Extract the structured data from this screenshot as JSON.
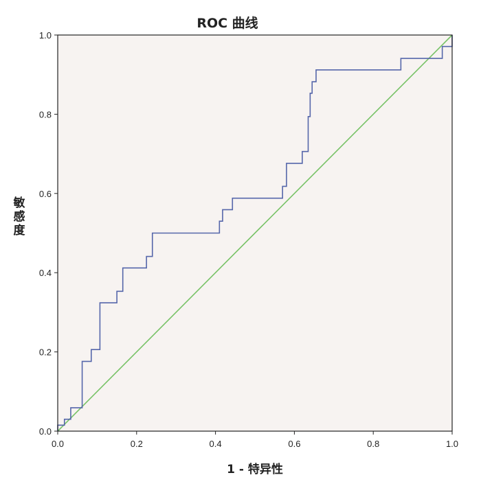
{
  "chart_data": {
    "type": "line",
    "title": "ROC 曲线",
    "xlabel": "1 - 特异性",
    "ylabel": "敏感度",
    "xlim": [
      0.0,
      1.0
    ],
    "ylim": [
      0.0,
      1.0
    ],
    "x_ticks": [
      "0.0",
      "0.2",
      "0.4",
      "0.6",
      "0.8",
      "1.0"
    ],
    "y_ticks": [
      "0.0",
      "0.2",
      "0.4",
      "0.6",
      "0.8",
      "1.0"
    ],
    "grid": false,
    "legend": "none",
    "colors": {
      "plot_background": "#f7f3f1",
      "roc_curve": "#5566aa",
      "reference_line": "#77c266",
      "frame": "#222222"
    },
    "series": [
      {
        "line_style": "step",
        "x": [
          0.0,
          0.0,
          0.017,
          0.017,
          0.033,
          0.033,
          0.062,
          0.062,
          0.085,
          0.085,
          0.107,
          0.107,
          0.15,
          0.15,
          0.165,
          0.165,
          0.225,
          0.225,
          0.24,
          0.24,
          0.41,
          0.41,
          0.418,
          0.418,
          0.443,
          0.443,
          0.57,
          0.57,
          0.58,
          0.58,
          0.62,
          0.62,
          0.635,
          0.635,
          0.64,
          0.64,
          0.645,
          0.645,
          0.655,
          0.655,
          0.67,
          0.67,
          0.87,
          0.87,
          0.975,
          0.975,
          1.0,
          1.0
        ],
        "y": [
          0.0,
          0.015,
          0.015,
          0.03,
          0.03,
          0.059,
          0.059,
          0.176,
          0.176,
          0.206,
          0.206,
          0.324,
          0.324,
          0.353,
          0.353,
          0.412,
          0.412,
          0.441,
          0.441,
          0.5,
          0.5,
          0.53,
          0.53,
          0.559,
          0.559,
          0.588,
          0.588,
          0.618,
          0.618,
          0.676,
          0.676,
          0.706,
          0.706,
          0.794,
          0.794,
          0.853,
          0.853,
          0.882,
          0.882,
          0.912,
          0.912,
          0.912,
          0.912,
          0.941,
          0.941,
          0.971,
          0.971,
          1.0
        ]
      },
      {
        "line_style": "straight",
        "x": [
          0.0,
          1.0
        ],
        "y": [
          0.0,
          1.0
        ]
      }
    ]
  }
}
